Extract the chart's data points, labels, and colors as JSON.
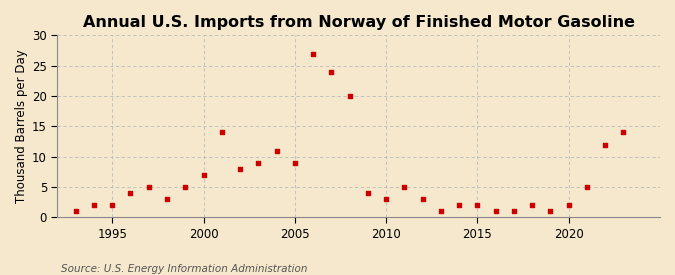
{
  "title": "Annual U.S. Imports from Norway of Finished Motor Gasoline",
  "ylabel": "Thousand Barrels per Day",
  "source": "Source: U.S. Energy Information Administration",
  "background_color": "#f5e8cc",
  "plot_background_color": "#f5e8cc",
  "marker_color": "#cc0000",
  "grid_color": "#bbbbbb",
  "ylim": [
    0,
    30
  ],
  "yticks": [
    0,
    5,
    10,
    15,
    20,
    25,
    30
  ],
  "years": [
    1993,
    1994,
    1995,
    1996,
    1997,
    1998,
    1999,
    2000,
    2001,
    2002,
    2003,
    2004,
    2005,
    2006,
    2007,
    2008,
    2009,
    2010,
    2011,
    2012,
    2013,
    2014,
    2015,
    2016,
    2017,
    2018,
    2019,
    2020,
    2021,
    2022,
    2023
  ],
  "values": [
    1,
    2,
    2,
    4,
    5,
    3,
    5,
    7,
    14,
    8,
    9,
    11,
    9,
    27,
    24,
    20,
    4,
    3,
    5,
    3,
    1,
    2,
    2,
    1,
    1,
    2,
    1,
    2,
    5,
    12,
    14
  ],
  "xtick_years": [
    1995,
    2000,
    2005,
    2010,
    2015,
    2020
  ],
  "xlim": [
    1992,
    2025
  ],
  "title_fontsize": 11.5,
  "label_fontsize": 8.5,
  "source_fontsize": 7.5,
  "tick_fontsize": 8.5
}
